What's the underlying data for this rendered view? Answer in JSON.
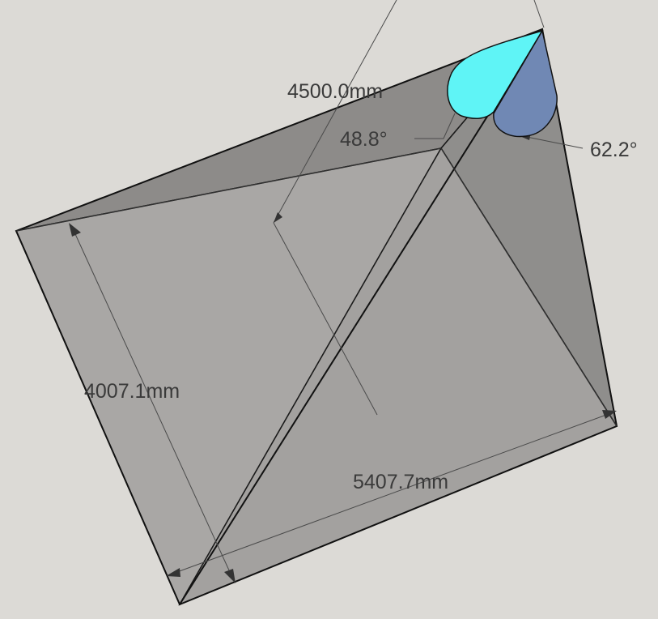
{
  "dimensions": {
    "depth_label": "4500.0mm",
    "left_edge_label": "4007.1mm",
    "bottom_edge_label": "5407.7mm"
  },
  "angles": {
    "angle_a_label": "48.8°",
    "angle_b_label": "62.2°"
  },
  "colors": {
    "background": "#dcdad6",
    "face_fill": "#9a9896",
    "protractor_a": "#5ff4f6",
    "protractor_b": "#7088b4"
  }
}
